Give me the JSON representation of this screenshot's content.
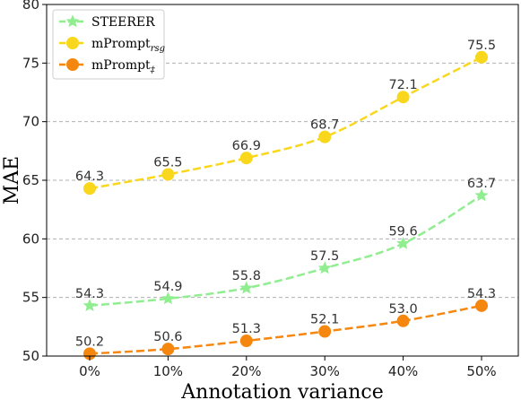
{
  "chart_data": {
    "type": "line",
    "title": "",
    "xlabel": "Annotation variance",
    "ylabel": "MAE",
    "categories": [
      "0%",
      "10%",
      "20%",
      "30%",
      "40%",
      "50%"
    ],
    "ylim": [
      50,
      80
    ],
    "yticks": [
      "50",
      "55",
      "60",
      "65",
      "70",
      "75",
      "80"
    ],
    "grid": "horizontal-dashed",
    "legend": "top-left",
    "series": [
      {
        "name": "STEERER",
        "name_sub": "",
        "color": "#90ee90",
        "marker": "star",
        "values": [
          54.3,
          54.9,
          55.8,
          57.5,
          59.6,
          63.7
        ],
        "labels": [
          "54.3",
          "54.9",
          "55.8",
          "57.5",
          "59.6",
          "63.7"
        ]
      },
      {
        "name": "mPrompt",
        "name_sub": "rsg",
        "color": "#f9d71c",
        "marker": "circle",
        "values": [
          64.3,
          65.5,
          66.9,
          68.7,
          72.1,
          75.5
        ],
        "labels": [
          "64.3",
          "65.5",
          "66.9",
          "68.7",
          "72.1",
          "75.5"
        ]
      },
      {
        "name": "mPrompt",
        "name_sub": "‡",
        "color": "#f5870f",
        "marker": "circle",
        "values": [
          50.2,
          50.6,
          51.3,
          52.1,
          53.0,
          54.3
        ],
        "labels": [
          "50.2",
          "50.6",
          "51.3",
          "52.1",
          "53.0",
          "54.3"
        ]
      }
    ]
  }
}
